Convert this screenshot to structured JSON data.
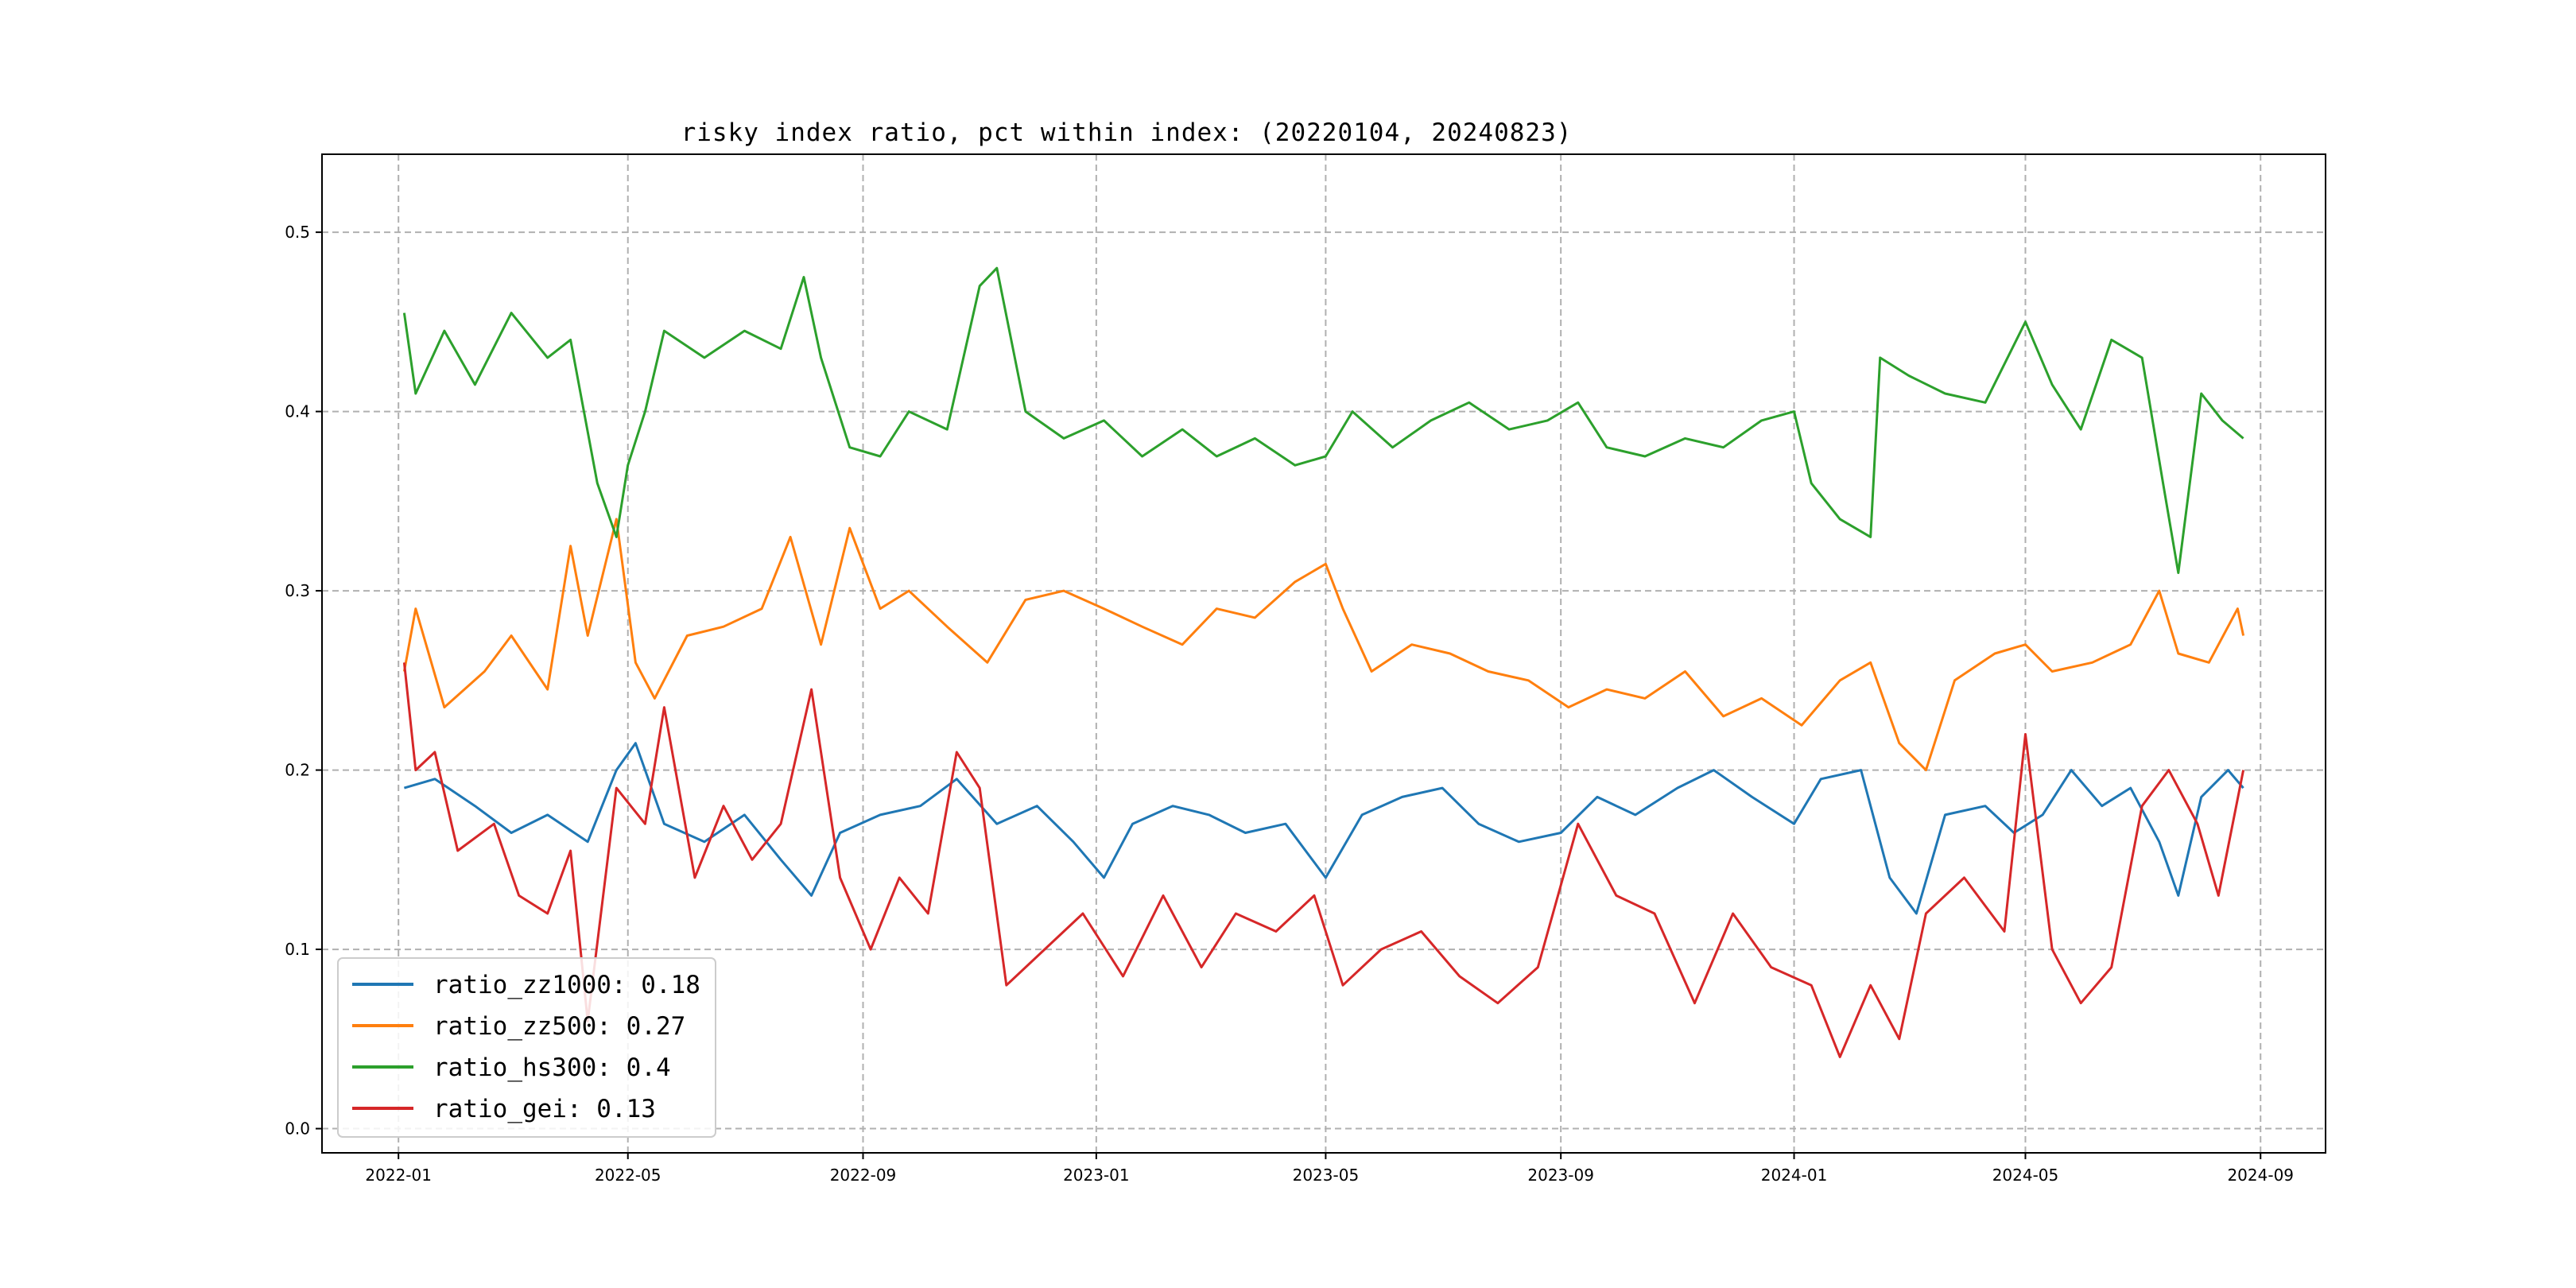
{
  "chart_data": {
    "type": "line",
    "title": "risky index ratio, pct within index: (20220104, 20240823)",
    "xlabel": "",
    "ylabel": "",
    "x_start": "2022-01-04",
    "x_end": "2024-08-23",
    "xlim": [
      "2021-11-22",
      "2024-10-05"
    ],
    "ylim": [
      -0.0135,
      0.5435
    ],
    "grid": true,
    "grid_style": "dashed",
    "legend_position": "lower-left",
    "x_ticks": [
      {
        "date": "2022-01-01",
        "label": "2022-01"
      },
      {
        "date": "2022-05-01",
        "label": "2022-05"
      },
      {
        "date": "2022-09-01",
        "label": "2022-09"
      },
      {
        "date": "2023-01-01",
        "label": "2023-01"
      },
      {
        "date": "2023-05-01",
        "label": "2023-05"
      },
      {
        "date": "2023-09-01",
        "label": "2023-09"
      },
      {
        "date": "2024-01-01",
        "label": "2024-01"
      },
      {
        "date": "2024-05-01",
        "label": "2024-05"
      },
      {
        "date": "2024-09-01",
        "label": "2024-09"
      }
    ],
    "y_ticks": [
      {
        "value": 0.0,
        "label": "0.0"
      },
      {
        "value": 0.1,
        "label": "0.1"
      },
      {
        "value": 0.2,
        "label": "0.2"
      },
      {
        "value": 0.3,
        "label": "0.3"
      },
      {
        "value": 0.4,
        "label": "0.4"
      },
      {
        "value": 0.5,
        "label": "0.5"
      }
    ],
    "series": [
      {
        "name": "ratio_zz1000",
        "legend_label": "ratio_zz1000: 0.18",
        "mean": 0.18,
        "color": "#1f77b4",
        "points": [
          [
            "2022-01-04",
            0.19
          ],
          [
            "2022-01-20",
            0.195
          ],
          [
            "2022-02-10",
            0.18
          ],
          [
            "2022-03-01",
            0.165
          ],
          [
            "2022-03-20",
            0.175
          ],
          [
            "2022-04-10",
            0.16
          ],
          [
            "2022-04-25",
            0.2
          ],
          [
            "2022-05-05",
            0.215
          ],
          [
            "2022-05-20",
            0.17
          ],
          [
            "2022-06-10",
            0.16
          ],
          [
            "2022-07-01",
            0.175
          ],
          [
            "2022-07-20",
            0.15
          ],
          [
            "2022-08-05",
            0.13
          ],
          [
            "2022-08-20",
            0.165
          ],
          [
            "2022-09-10",
            0.175
          ],
          [
            "2022-10-01",
            0.18
          ],
          [
            "2022-10-20",
            0.195
          ],
          [
            "2022-11-10",
            0.17
          ],
          [
            "2022-12-01",
            0.18
          ],
          [
            "2022-12-20",
            0.16
          ],
          [
            "2023-01-05",
            0.14
          ],
          [
            "2023-01-20",
            0.17
          ],
          [
            "2023-02-10",
            0.18
          ],
          [
            "2023-03-01",
            0.175
          ],
          [
            "2023-03-20",
            0.165
          ],
          [
            "2023-04-10",
            0.17
          ],
          [
            "2023-05-01",
            0.14
          ],
          [
            "2023-05-20",
            0.175
          ],
          [
            "2023-06-10",
            0.185
          ],
          [
            "2023-07-01",
            0.19
          ],
          [
            "2023-07-20",
            0.17
          ],
          [
            "2023-08-10",
            0.16
          ],
          [
            "2023-09-01",
            0.165
          ],
          [
            "2023-09-20",
            0.185
          ],
          [
            "2023-10-10",
            0.175
          ],
          [
            "2023-11-01",
            0.19
          ],
          [
            "2023-11-20",
            0.2
          ],
          [
            "2023-12-10",
            0.185
          ],
          [
            "2024-01-01",
            0.17
          ],
          [
            "2024-01-15",
            0.195
          ],
          [
            "2024-02-05",
            0.2
          ],
          [
            "2024-02-20",
            0.14
          ],
          [
            "2024-03-05",
            0.12
          ],
          [
            "2024-03-20",
            0.175
          ],
          [
            "2024-04-10",
            0.18
          ],
          [
            "2024-04-25",
            0.165
          ],
          [
            "2024-05-10",
            0.175
          ],
          [
            "2024-05-25",
            0.2
          ],
          [
            "2024-06-10",
            0.18
          ],
          [
            "2024-06-25",
            0.19
          ],
          [
            "2024-07-10",
            0.16
          ],
          [
            "2024-07-20",
            0.13
          ],
          [
            "2024-08-01",
            0.185
          ],
          [
            "2024-08-15",
            0.2
          ],
          [
            "2024-08-23",
            0.19
          ]
        ]
      },
      {
        "name": "ratio_zz500",
        "legend_label": "ratio_zz500: 0.27",
        "mean": 0.27,
        "color": "#ff7f0e",
        "points": [
          [
            "2022-01-04",
            0.255
          ],
          [
            "2022-01-10",
            0.29
          ],
          [
            "2022-01-25",
            0.235
          ],
          [
            "2022-02-15",
            0.255
          ],
          [
            "2022-03-01",
            0.275
          ],
          [
            "2022-03-20",
            0.245
          ],
          [
            "2022-04-01",
            0.325
          ],
          [
            "2022-04-10",
            0.275
          ],
          [
            "2022-04-25",
            0.34
          ],
          [
            "2022-05-05",
            0.26
          ],
          [
            "2022-05-15",
            0.24
          ],
          [
            "2022-06-01",
            0.275
          ],
          [
            "2022-06-20",
            0.28
          ],
          [
            "2022-07-10",
            0.29
          ],
          [
            "2022-07-25",
            0.33
          ],
          [
            "2022-08-10",
            0.27
          ],
          [
            "2022-08-25",
            0.335
          ],
          [
            "2022-09-10",
            0.29
          ],
          [
            "2022-09-25",
            0.3
          ],
          [
            "2022-10-15",
            0.28
          ],
          [
            "2022-11-05",
            0.26
          ],
          [
            "2022-11-25",
            0.295
          ],
          [
            "2022-12-15",
            0.3
          ],
          [
            "2023-01-05",
            0.29
          ],
          [
            "2023-01-25",
            0.28
          ],
          [
            "2023-02-15",
            0.27
          ],
          [
            "2023-03-05",
            0.29
          ],
          [
            "2023-03-25",
            0.285
          ],
          [
            "2023-04-15",
            0.305
          ],
          [
            "2023-05-01",
            0.315
          ],
          [
            "2023-05-10",
            0.29
          ],
          [
            "2023-05-25",
            0.255
          ],
          [
            "2023-06-15",
            0.27
          ],
          [
            "2023-07-05",
            0.265
          ],
          [
            "2023-07-25",
            0.255
          ],
          [
            "2023-08-15",
            0.25
          ],
          [
            "2023-09-05",
            0.235
          ],
          [
            "2023-09-25",
            0.245
          ],
          [
            "2023-10-15",
            0.24
          ],
          [
            "2023-11-05",
            0.255
          ],
          [
            "2023-11-25",
            0.23
          ],
          [
            "2023-12-15",
            0.24
          ],
          [
            "2024-01-05",
            0.225
          ],
          [
            "2024-01-25",
            0.25
          ],
          [
            "2024-02-10",
            0.26
          ],
          [
            "2024-02-25",
            0.215
          ],
          [
            "2024-03-10",
            0.2
          ],
          [
            "2024-03-25",
            0.25
          ],
          [
            "2024-04-15",
            0.265
          ],
          [
            "2024-05-01",
            0.27
          ],
          [
            "2024-05-15",
            0.255
          ],
          [
            "2024-06-05",
            0.26
          ],
          [
            "2024-06-25",
            0.27
          ],
          [
            "2024-07-10",
            0.3
          ],
          [
            "2024-07-20",
            0.265
          ],
          [
            "2024-08-05",
            0.26
          ],
          [
            "2024-08-20",
            0.29
          ],
          [
            "2024-08-23",
            0.275
          ]
        ]
      },
      {
        "name": "ratio_hs300",
        "legend_label": "ratio_hs300: 0.4",
        "mean": 0.4,
        "color": "#2ca02c",
        "points": [
          [
            "2022-01-04",
            0.455
          ],
          [
            "2022-01-10",
            0.41
          ],
          [
            "2022-01-25",
            0.445
          ],
          [
            "2022-02-10",
            0.415
          ],
          [
            "2022-03-01",
            0.455
          ],
          [
            "2022-03-20",
            0.43
          ],
          [
            "2022-04-01",
            0.44
          ],
          [
            "2022-04-15",
            0.36
          ],
          [
            "2022-04-25",
            0.33
          ],
          [
            "2022-05-01",
            0.37
          ],
          [
            "2022-05-10",
            0.4
          ],
          [
            "2022-05-20",
            0.445
          ],
          [
            "2022-06-10",
            0.43
          ],
          [
            "2022-07-01",
            0.445
          ],
          [
            "2022-07-20",
            0.435
          ],
          [
            "2022-08-01",
            0.475
          ],
          [
            "2022-08-10",
            0.43
          ],
          [
            "2022-08-25",
            0.38
          ],
          [
            "2022-09-10",
            0.375
          ],
          [
            "2022-09-25",
            0.4
          ],
          [
            "2022-10-15",
            0.39
          ],
          [
            "2022-11-01",
            0.47
          ],
          [
            "2022-11-10",
            0.48
          ],
          [
            "2022-11-25",
            0.4
          ],
          [
            "2022-12-15",
            0.385
          ],
          [
            "2023-01-05",
            0.395
          ],
          [
            "2023-01-25",
            0.375
          ],
          [
            "2023-02-15",
            0.39
          ],
          [
            "2023-03-05",
            0.375
          ],
          [
            "2023-03-25",
            0.385
          ],
          [
            "2023-04-15",
            0.37
          ],
          [
            "2023-05-01",
            0.375
          ],
          [
            "2023-05-15",
            0.4
          ],
          [
            "2023-06-05",
            0.38
          ],
          [
            "2023-06-25",
            0.395
          ],
          [
            "2023-07-15",
            0.405
          ],
          [
            "2023-08-05",
            0.39
          ],
          [
            "2023-08-25",
            0.395
          ],
          [
            "2023-09-10",
            0.405
          ],
          [
            "2023-09-25",
            0.38
          ],
          [
            "2023-10-15",
            0.375
          ],
          [
            "2023-11-05",
            0.385
          ],
          [
            "2023-11-25",
            0.38
          ],
          [
            "2023-12-15",
            0.395
          ],
          [
            "2024-01-01",
            0.4
          ],
          [
            "2024-01-10",
            0.36
          ],
          [
            "2024-01-25",
            0.34
          ],
          [
            "2024-02-10",
            0.33
          ],
          [
            "2024-02-15",
            0.43
          ],
          [
            "2024-03-01",
            0.42
          ],
          [
            "2024-03-20",
            0.41
          ],
          [
            "2024-04-10",
            0.405
          ],
          [
            "2024-05-01",
            0.45
          ],
          [
            "2024-05-15",
            0.415
          ],
          [
            "2024-05-30",
            0.39
          ],
          [
            "2024-06-15",
            0.44
          ],
          [
            "2024-07-01",
            0.43
          ],
          [
            "2024-07-12",
            0.36
          ],
          [
            "2024-07-20",
            0.31
          ],
          [
            "2024-08-01",
            0.41
          ],
          [
            "2024-08-12",
            0.395
          ],
          [
            "2024-08-23",
            0.385
          ]
        ]
      },
      {
        "name": "ratio_gei",
        "legend_label": "ratio_gei: 0.13",
        "mean": 0.13,
        "color": "#d62728",
        "points": [
          [
            "2022-01-04",
            0.26
          ],
          [
            "2022-01-10",
            0.2
          ],
          [
            "2022-01-20",
            0.21
          ],
          [
            "2022-02-01",
            0.155
          ],
          [
            "2022-02-20",
            0.17
          ],
          [
            "2022-03-05",
            0.13
          ],
          [
            "2022-03-20",
            0.12
          ],
          [
            "2022-04-01",
            0.155
          ],
          [
            "2022-04-10",
            0.06
          ],
          [
            "2022-04-25",
            0.19
          ],
          [
            "2022-05-10",
            0.17
          ],
          [
            "2022-05-20",
            0.235
          ],
          [
            "2022-06-05",
            0.14
          ],
          [
            "2022-06-20",
            0.18
          ],
          [
            "2022-07-05",
            0.15
          ],
          [
            "2022-07-20",
            0.17
          ],
          [
            "2022-08-05",
            0.245
          ],
          [
            "2022-08-20",
            0.14
          ],
          [
            "2022-09-05",
            0.1
          ],
          [
            "2022-09-20",
            0.14
          ],
          [
            "2022-10-05",
            0.12
          ],
          [
            "2022-10-20",
            0.21
          ],
          [
            "2022-11-01",
            0.19
          ],
          [
            "2022-11-15",
            0.08
          ],
          [
            "2022-12-05",
            0.1
          ],
          [
            "2022-12-25",
            0.12
          ],
          [
            "2023-01-15",
            0.085
          ],
          [
            "2023-02-05",
            0.13
          ],
          [
            "2023-02-25",
            0.09
          ],
          [
            "2023-03-15",
            0.12
          ],
          [
            "2023-04-05",
            0.11
          ],
          [
            "2023-04-25",
            0.13
          ],
          [
            "2023-05-10",
            0.08
          ],
          [
            "2023-05-30",
            0.1
          ],
          [
            "2023-06-20",
            0.11
          ],
          [
            "2023-07-10",
            0.085
          ],
          [
            "2023-07-30",
            0.07
          ],
          [
            "2023-08-20",
            0.09
          ],
          [
            "2023-09-10",
            0.17
          ],
          [
            "2023-09-30",
            0.13
          ],
          [
            "2023-10-20",
            0.12
          ],
          [
            "2023-11-10",
            0.07
          ],
          [
            "2023-11-30",
            0.12
          ],
          [
            "2023-12-20",
            0.09
          ],
          [
            "2024-01-10",
            0.08
          ],
          [
            "2024-01-25",
            0.04
          ],
          [
            "2024-02-10",
            0.08
          ],
          [
            "2024-02-25",
            0.05
          ],
          [
            "2024-03-10",
            0.12
          ],
          [
            "2024-03-30",
            0.14
          ],
          [
            "2024-04-20",
            0.11
          ],
          [
            "2024-05-01",
            0.22
          ],
          [
            "2024-05-15",
            0.1
          ],
          [
            "2024-05-30",
            0.07
          ],
          [
            "2024-06-15",
            0.09
          ],
          [
            "2024-07-01",
            0.18
          ],
          [
            "2024-07-15",
            0.2
          ],
          [
            "2024-07-30",
            0.17
          ],
          [
            "2024-08-10",
            0.13
          ],
          [
            "2024-08-23",
            0.2
          ]
        ]
      }
    ]
  }
}
